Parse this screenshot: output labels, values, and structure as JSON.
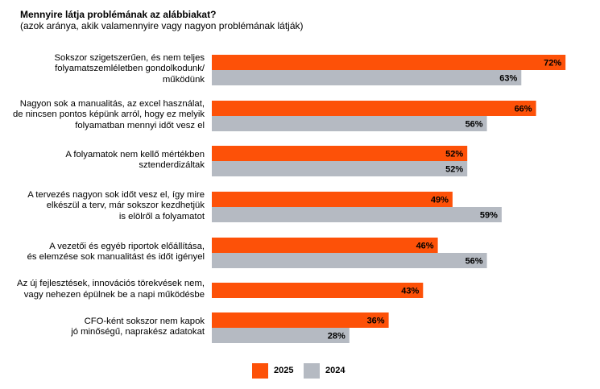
{
  "chart_data": {
    "type": "bar",
    "orientation": "horizontal",
    "title": "Mennyire látja problémának az alábbiakat?",
    "subtitle": "(azok aránya, akik valamennyire vagy nagyon problémának látják)",
    "xlabel": "",
    "ylabel": "",
    "xlim": [
      0,
      100
    ],
    "grid": false,
    "unit": "%",
    "legend_position": "bottom-center",
    "categories": [
      [
        "Sokszor szigetszerűen, és nem teljes",
        "folyamatszemléletben gondolkodunk/",
        "működünk"
      ],
      [
        "Nagyon sok a manualitás, az excel használat,",
        "de nincsen pontos képünk arról, hogy ez melyik",
        "folyamatban mennyi időt vesz el"
      ],
      [
        "A folyamatok nem kellő mértékben",
        "sztenderdizáltak"
      ],
      [
        "A tervezés nagyon sok időt vesz el, így mire",
        "elkészül a terv, már sokszor kezdhetjük",
        "is elölről a folyamatot"
      ],
      [
        "A vezetői és egyéb riportok előállítása,",
        "és elemzése sok manualitást és időt igényel"
      ],
      [
        "Az új fejlesztések, innovációs törekvések nem,",
        "vagy nehezen épülnek be a napi működésbe"
      ],
      [
        "CFO-ként sokszor nem kapok",
        "jó minőségű, naprakész adatokat"
      ]
    ],
    "series": [
      {
        "name": "2025",
        "color": "#FD5108",
        "values": [
          72,
          66,
          52,
          49,
          46,
          43,
          36
        ]
      },
      {
        "name": "2024",
        "color": "#B5BAC2",
        "values": [
          63,
          56,
          52,
          59,
          56,
          null,
          28
        ]
      }
    ]
  },
  "legend": [
    {
      "label": "2025",
      "color": "#FD5108"
    },
    {
      "label": "2024",
      "color": "#B5BAC2"
    }
  ]
}
